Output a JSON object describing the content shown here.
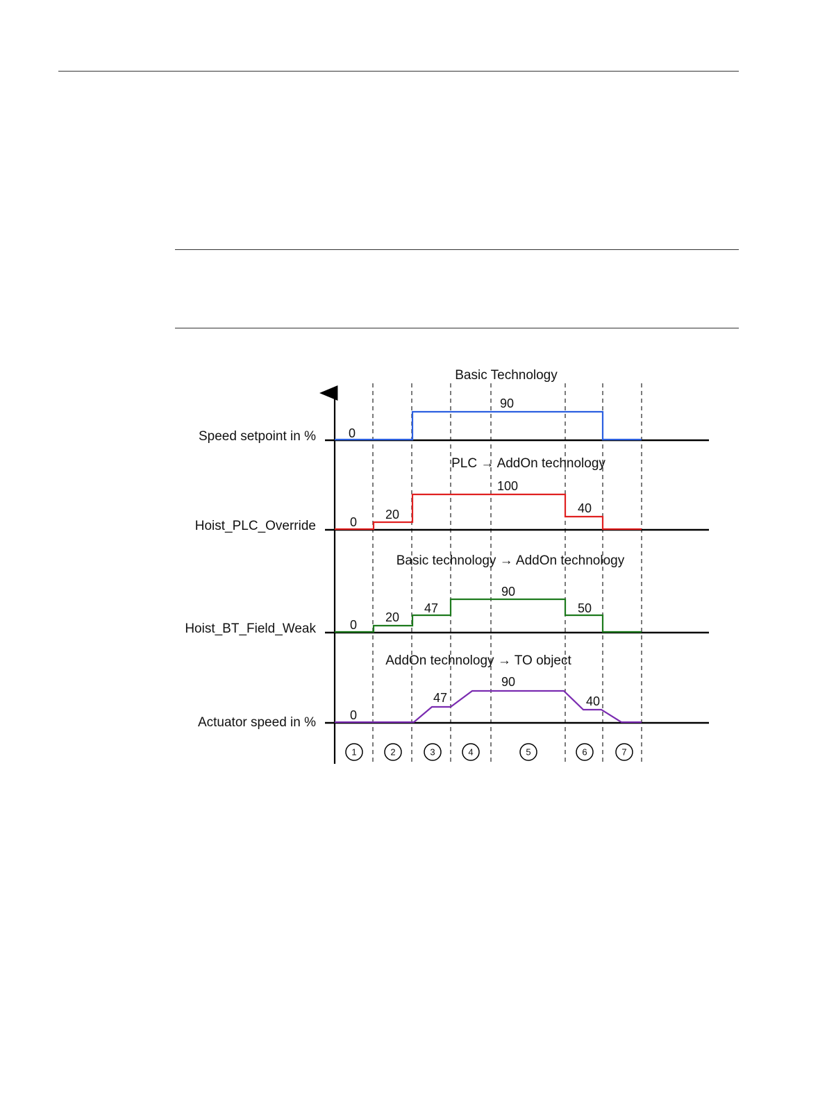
{
  "section_titles": {
    "speed_setpoint": "Basic Technology",
    "plc_override": "PLC → AddOn technology",
    "field_weak": "Basic technology → AddOn technology",
    "actuator": "AddOn technology → TO object"
  },
  "row_labels": {
    "speed_setpoint": "Speed setpoint in %",
    "plc_override": "Hoist_PLC_Override",
    "field_weak": "Hoist_BT_Field_Weak",
    "actuator": "Actuator speed in %"
  },
  "step_numbers": [
    "1",
    "2",
    "3",
    "4",
    "5",
    "6",
    "7"
  ],
  "colors": {
    "speed_setpoint": "#2b5fe0",
    "plc_override": "#e02020",
    "field_weak": "#1d7a1d",
    "actuator": "#7a2bb0",
    "axis": "#000000"
  },
  "chart_data": {
    "type": "line",
    "x_phases": [
      "1",
      "2",
      "3",
      "4",
      "5",
      "6",
      "7"
    ],
    "series": [
      {
        "name": "Speed setpoint in %",
        "values_per_phase": [
          0,
          0,
          90,
          90,
          90,
          90,
          0
        ],
        "labels": [
          "0",
          "90"
        ]
      },
      {
        "name": "Hoist_PLC_Override",
        "values_per_phase": [
          0,
          20,
          100,
          100,
          100,
          40,
          0
        ],
        "labels": [
          "0",
          "20",
          "100",
          "40"
        ]
      },
      {
        "name": "Hoist_BT_Field_Weak",
        "values_per_phase": [
          0,
          20,
          47,
          90,
          90,
          50,
          0
        ],
        "labels": [
          "0",
          "20",
          "47",
          "90",
          "50"
        ]
      },
      {
        "name": "Actuator speed in %",
        "values_per_phase": [
          0,
          0,
          47,
          90,
          90,
          40,
          0
        ],
        "labels": [
          "0",
          "47",
          "90",
          "40"
        ]
      }
    ]
  }
}
